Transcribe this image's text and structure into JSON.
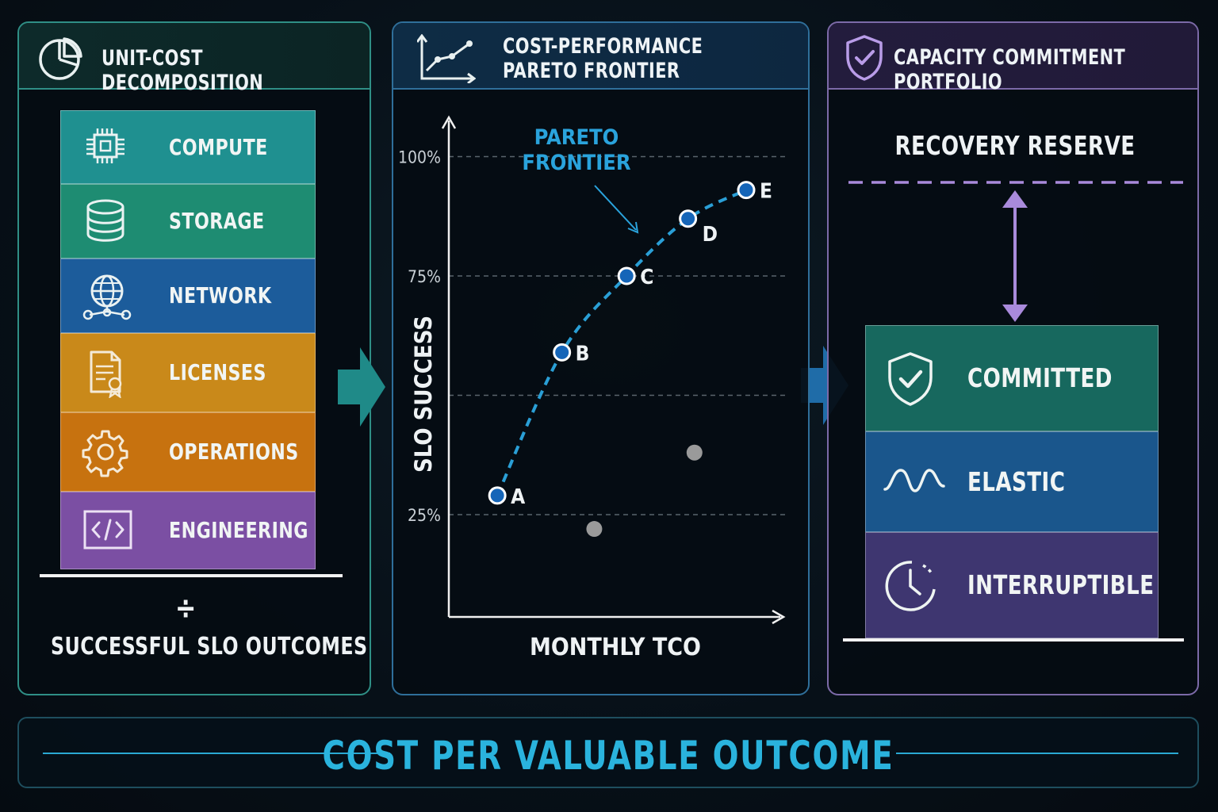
{
  "panels": {
    "unit_cost": {
      "title": "UNIT-COST DECOMPOSITION",
      "rows": [
        {
          "label": "COMPUTE",
          "icon": "cpu-chip-icon",
          "color": "#1f9090"
        },
        {
          "label": "STORAGE",
          "icon": "database-icon",
          "color": "#1e8c72"
        },
        {
          "label": "NETWORK",
          "icon": "globe-network-icon",
          "color": "#1c5c9b"
        },
        {
          "label": "LICENSES",
          "icon": "license-certificate-icon",
          "color": "#c9891a"
        },
        {
          "label": "OPERATIONS",
          "icon": "gear-icon",
          "color": "#c7720f"
        },
        {
          "label": "ENGINEERING",
          "icon": "code-icon",
          "color": "#7b4fa3"
        }
      ],
      "divide_symbol": "÷",
      "denominator": "SUCCESSFUL SLO OUTCOMES"
    },
    "pareto": {
      "title_line1": "COST-PERFORMANCE",
      "title_line2": "PARETO FRONTIER",
      "annotation_line1": "PARETO",
      "annotation_line2": "FRONTIER"
    },
    "capacity": {
      "title": "CAPACITY COMMITMENT PORTFOLIO",
      "reserve_label": "RECOVERY RESERVE",
      "rows": [
        {
          "label": "COMMITTED",
          "icon": "shield-check-icon",
          "color": "#17685e"
        },
        {
          "label": "ELASTIC",
          "icon": "wave-icon",
          "color": "#1a568c"
        },
        {
          "label": "INTERRUPTIBLE",
          "icon": "clock-icon",
          "color": "#3e3670"
        }
      ]
    }
  },
  "chart_data": {
    "type": "scatter",
    "title": "COST-PERFORMANCE PARETO FRONTIER",
    "xlabel": "MONTHLY TCO",
    "ylabel": "SLO SUCCESS",
    "yticks": [
      "25%",
      "75%",
      "100%"
    ],
    "ylim": [
      0,
      100
    ],
    "grid": true,
    "series": [
      {
        "name": "PARETO FRONTIER",
        "color": "#2a9fd6",
        "points": [
          {
            "label": "A",
            "x": 1.5,
            "y": 29
          },
          {
            "label": "B",
            "x": 3.5,
            "y": 59
          },
          {
            "label": "C",
            "x": 5.5,
            "y": 75
          },
          {
            "label": "D",
            "x": 7.4,
            "y": 87
          },
          {
            "label": "E",
            "x": 9.2,
            "y": 93
          }
        ]
      },
      {
        "color": "#9a9a9a",
        "points": [
          {
            "x": 4.5,
            "y": 22
          },
          {
            "x": 7.6,
            "y": 38
          }
        ]
      }
    ],
    "xlim": [
      0,
      10.5
    ]
  },
  "footer": {
    "text": "COST PER VALUABLE OUTCOME"
  }
}
